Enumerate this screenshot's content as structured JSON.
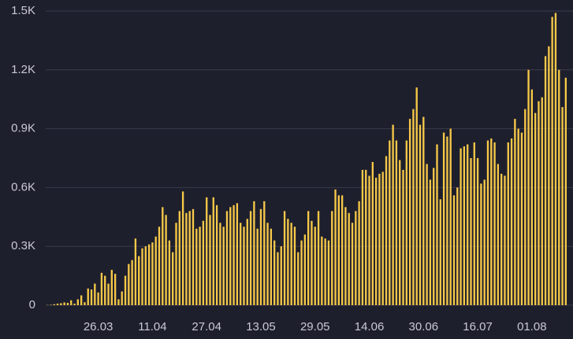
{
  "chart_data": {
    "type": "bar",
    "categories": [
      null,
      null,
      null,
      null,
      null,
      null,
      null,
      null,
      null,
      null,
      null,
      null,
      null,
      null,
      null,
      "26.03",
      null,
      null,
      null,
      null,
      null,
      null,
      null,
      null,
      null,
      null,
      null,
      null,
      null,
      null,
      null,
      "11.04",
      null,
      null,
      null,
      null,
      null,
      null,
      null,
      null,
      null,
      null,
      null,
      null,
      null,
      null,
      null,
      "27.04",
      null,
      null,
      null,
      null,
      null,
      null,
      null,
      null,
      null,
      null,
      null,
      null,
      null,
      null,
      null,
      "13.05",
      null,
      null,
      null,
      null,
      null,
      null,
      null,
      null,
      null,
      null,
      null,
      null,
      null,
      null,
      null,
      "29.05",
      null,
      null,
      null,
      null,
      null,
      null,
      null,
      null,
      null,
      null,
      null,
      null,
      null,
      null,
      null,
      "14.06",
      null,
      null,
      null,
      null,
      null,
      null,
      null,
      null,
      null,
      null,
      null,
      null,
      null,
      null,
      null,
      "30.06",
      null,
      null,
      null,
      null,
      null,
      null,
      null,
      null,
      null,
      null,
      null,
      null,
      null,
      null,
      null,
      "16.07",
      null,
      null,
      null,
      null,
      null,
      null,
      null,
      null,
      null,
      null,
      null,
      null,
      null,
      null,
      null,
      "01.08",
      null,
      null,
      null,
      null,
      null,
      null,
      null,
      null,
      null,
      null
    ],
    "values": [
      1,
      2,
      5,
      8,
      10,
      14,
      12,
      25,
      8,
      30,
      50,
      15,
      85,
      80,
      110,
      65,
      165,
      150,
      110,
      180,
      160,
      30,
      70,
      150,
      210,
      230,
      340,
      250,
      290,
      300,
      310,
      320,
      350,
      400,
      500,
      460,
      330,
      270,
      420,
      480,
      580,
      470,
      480,
      490,
      390,
      400,
      430,
      550,
      460,
      550,
      510,
      420,
      400,
      480,
      500,
      510,
      520,
      420,
      400,
      440,
      480,
      530,
      390,
      490,
      530,
      420,
      390,
      330,
      270,
      300,
      480,
      440,
      420,
      400,
      270,
      330,
      360,
      480,
      430,
      400,
      480,
      350,
      340,
      330,
      480,
      590,
      560,
      560,
      500,
      470,
      420,
      480,
      530,
      690,
      690,
      660,
      730,
      650,
      670,
      680,
      760,
      840,
      920,
      840,
      740,
      690,
      840,
      950,
      1000,
      1110,
      920,
      960,
      720,
      640,
      700,
      820,
      540,
      880,
      860,
      900,
      560,
      600,
      800,
      810,
      820,
      750,
      830,
      750,
      620,
      640,
      840,
      850,
      830,
      720,
      670,
      660,
      830,
      850,
      950,
      900,
      880,
      1000,
      1200,
      1100,
      980,
      1040,
      1060,
      1270,
      1320,
      1470,
      1490,
      1200,
      1010,
      1160
    ],
    "color": "#f7c948",
    "ylim": [
      0,
      1500
    ],
    "yticks": [
      0,
      {
        "value": 300,
        "label": "0.3K"
      },
      {
        "value": 600,
        "label": "0.6K"
      },
      {
        "value": 900,
        "label": "0.9K"
      },
      {
        "value": 1200,
        "label": "1.2K"
      },
      {
        "value": 1500,
        "label": "1.5K"
      }
    ],
    "grid": true
  }
}
